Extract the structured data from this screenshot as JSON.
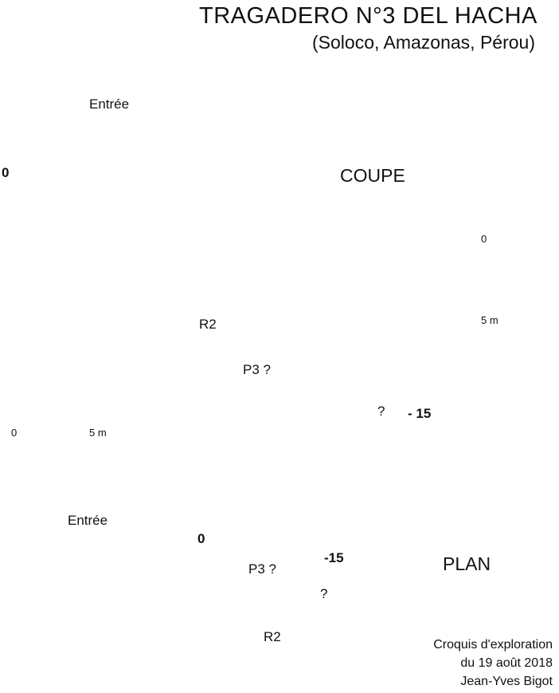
{
  "title": "TRAGADERO N°3 DEL HACHA",
  "subtitle": "(Soloco, Amazonas, Pérou)",
  "section": {
    "heading": "COUPE",
    "entrance_label": "Entrée",
    "depth_top": "0",
    "depth_bottom": "- 15",
    "r2_label": "R2",
    "p3_label": "P3 ?",
    "unknown_label": "?",
    "horizontal_scale": {
      "zero": "0",
      "end": "5 m"
    },
    "vertical_scale": {
      "zero": "0",
      "end": "5 m"
    }
  },
  "plan": {
    "heading": "PLAN",
    "entrance_label": "Entrée",
    "depth_top": "0",
    "depth_bottom": "-15",
    "p3_label": "P3 ?",
    "r2_label": "R2",
    "unknown_label": "?"
  },
  "credits": {
    "line1": "Croquis d'exploration",
    "line2": "du 19 août 2018",
    "line3": "Jean-Yves Bigot"
  },
  "colors": {
    "ink": "#111111",
    "vegetation_dark": "#1f9a1f",
    "vegetation_light": "#7fe07f",
    "water_flow": "#1a33cc"
  }
}
